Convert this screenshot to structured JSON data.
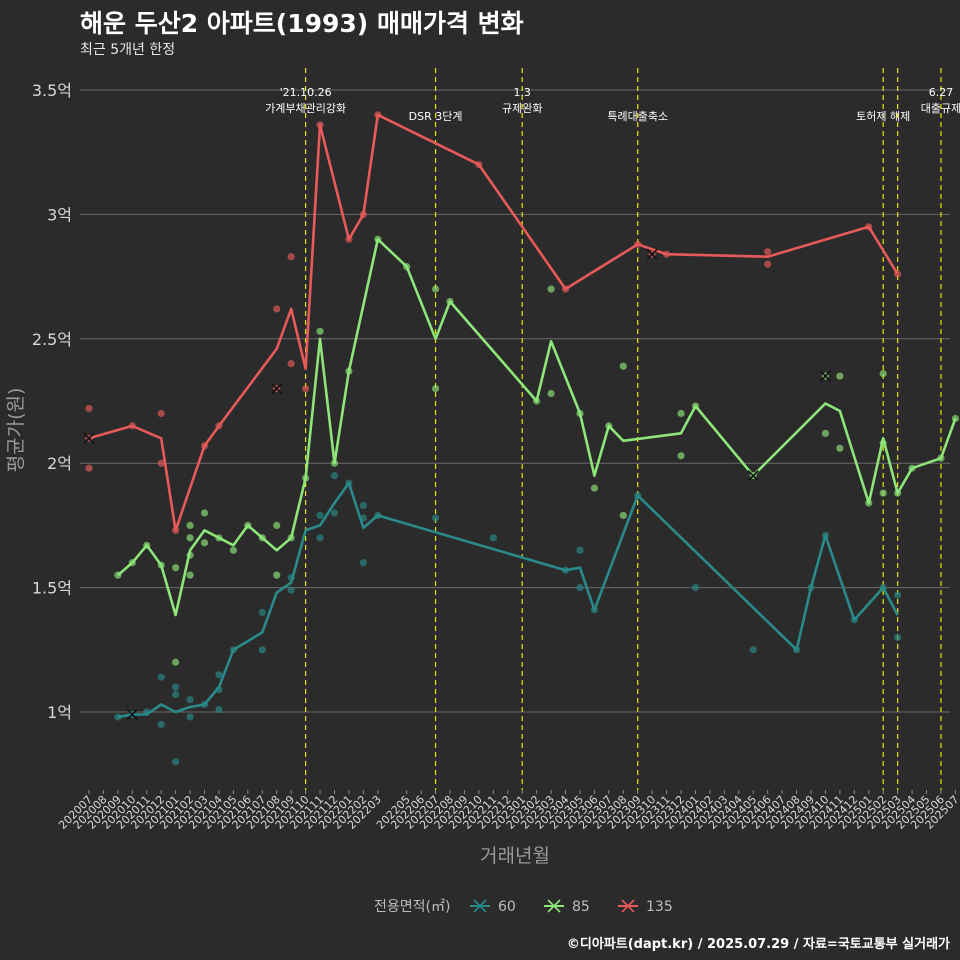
{
  "header": {
    "title": "해운 두산2 아파트(1993) 매매가격 변화",
    "subtitle": "최근 5개년 한정",
    "footer": "©디아파트(dapt.kr) / 2025.07.29 / 자료=국토교통부 실거래가"
  },
  "chart_data": {
    "type": "line",
    "title": "해운 두산2 아파트(1993) 매매가격 변화",
    "subtitle": "최근 5개년 한정",
    "xlabel": "거래년월",
    "ylabel": "평균가(원)",
    "ylim": [
      0.75,
      3.5
    ],
    "yticks": [
      1,
      1.5,
      2,
      2.5,
      3,
      3.5
    ],
    "ytick_labels": [
      "1억",
      "1.5억",
      "2억",
      "2.5억",
      "3억",
      "3.5억"
    ],
    "x_categories": [
      "202007",
      "202008",
      "202009",
      "202010",
      "202011",
      "202012",
      "202101",
      "202102",
      "202103",
      "202104",
      "202105",
      "202106",
      "202107",
      "202108",
      "202109",
      "202110",
      "202111",
      "202112",
      "202201",
      "202202",
      "202203",
      "202205",
      "202206",
      "202207",
      "202208",
      "202209",
      "202210",
      "202211",
      "202212",
      "202301",
      "202302",
      "202303",
      "202304",
      "202305",
      "202306",
      "202307",
      "202308",
      "202309",
      "202310",
      "202311",
      "202312",
      "202401",
      "202402",
      "202403",
      "202404",
      "202405",
      "202406",
      "202407",
      "202408",
      "202409",
      "202410",
      "202411",
      "202412",
      "202501",
      "202502",
      "202503",
      "202504",
      "202505",
      "202506",
      "202507"
    ],
    "legend": {
      "title": "전용면적(㎡)",
      "position": "bottom"
    },
    "grid": true,
    "series": [
      {
        "name": "60",
        "color": "#2a8a8a",
        "line": [
          [
            "202009",
            0.98
          ],
          [
            "202010",
            0.99
          ],
          [
            "202011",
            0.99
          ],
          [
            "202012",
            1.03
          ],
          [
            "202101",
            1.0
          ],
          [
            "202102",
            1.02
          ],
          [
            "202103",
            1.03
          ],
          [
            "202104",
            1.1
          ],
          [
            "202105",
            1.25
          ],
          [
            "202107",
            1.32
          ],
          [
            "202108",
            1.48
          ],
          [
            "202109",
            1.52
          ],
          [
            "202110",
            1.73
          ],
          [
            "202111",
            1.75
          ],
          [
            "202112",
            1.84
          ],
          [
            "202201",
            1.92
          ],
          [
            "202202",
            1.74
          ],
          [
            "202203",
            1.79
          ],
          [
            "202304",
            1.57
          ],
          [
            "202305",
            1.58
          ],
          [
            "202306",
            1.41
          ],
          [
            "202309",
            1.87
          ],
          [
            "202408",
            1.25
          ],
          [
            "202409",
            1.5
          ],
          [
            "202410",
            1.71
          ],
          [
            "202412",
            1.37
          ],
          [
            "202502",
            1.5
          ],
          [
            "202503",
            1.39
          ]
        ],
        "points": [
          [
            "202009",
            0.98
          ],
          [
            "202010",
            0.99
          ],
          [
            "202011",
            1.0
          ],
          [
            "202012",
            0.95
          ],
          [
            "202012",
            1.14
          ],
          [
            "202101",
            0.8
          ],
          [
            "202101",
            1.07
          ],
          [
            "202101",
            1.1
          ],
          [
            "202102",
            0.98
          ],
          [
            "202102",
            1.05
          ],
          [
            "202103",
            1.03
          ],
          [
            "202104",
            1.01
          ],
          [
            "202104",
            1.09
          ],
          [
            "202104",
            1.15
          ],
          [
            "202105",
            1.25
          ],
          [
            "202107",
            1.25
          ],
          [
            "202107",
            1.4
          ],
          [
            "202109",
            1.49
          ],
          [
            "202109",
            1.54
          ],
          [
            "202111",
            1.7
          ],
          [
            "202111",
            1.79
          ],
          [
            "202112",
            1.8
          ],
          [
            "202112",
            1.95
          ],
          [
            "202201",
            1.92
          ],
          [
            "202202",
            1.6
          ],
          [
            "202202",
            1.78
          ],
          [
            "202202",
            1.83
          ],
          [
            "202203",
            1.79
          ],
          [
            "202207",
            1.78
          ],
          [
            "202211",
            1.7
          ],
          [
            "202304",
            1.57
          ],
          [
            "202305",
            1.5
          ],
          [
            "202305",
            1.65
          ],
          [
            "202306",
            1.41
          ],
          [
            "202309",
            1.87
          ],
          [
            "202401",
            1.5
          ],
          [
            "202405",
            1.25
          ],
          [
            "202408",
            1.25
          ],
          [
            "202409",
            1.5
          ],
          [
            "202410",
            1.71
          ],
          [
            "202412",
            1.37
          ],
          [
            "202502",
            1.5
          ],
          [
            "202503",
            1.3
          ],
          [
            "202503",
            1.47
          ]
        ],
        "cancelled": [
          [
            "202010",
            0.99
          ]
        ]
      },
      {
        "name": "85",
        "color": "#8ee67a",
        "line": [
          [
            "202009",
            1.55
          ],
          [
            "202010",
            1.6
          ],
          [
            "202011",
            1.67
          ],
          [
            "202012",
            1.59
          ],
          [
            "202101",
            1.39
          ],
          [
            "202102",
            1.65
          ],
          [
            "202103",
            1.73
          ],
          [
            "202104",
            1.7
          ],
          [
            "202105",
            1.67
          ],
          [
            "202106",
            1.75
          ],
          [
            "202107",
            1.7
          ],
          [
            "202108",
            1.65
          ],
          [
            "202109",
            1.7
          ],
          [
            "202110",
            1.94
          ],
          [
            "202111",
            2.5
          ],
          [
            "202112",
            2.0
          ],
          [
            "202201",
            2.37
          ],
          [
            "202203",
            2.9
          ],
          [
            "202205",
            2.79
          ],
          [
            "202207",
            2.5
          ],
          [
            "202208",
            2.65
          ],
          [
            "202302",
            2.25
          ],
          [
            "202303",
            2.49
          ],
          [
            "202305",
            2.2
          ],
          [
            "202306",
            1.95
          ],
          [
            "202307",
            2.15
          ],
          [
            "202308",
            2.09
          ],
          [
            "202312",
            2.12
          ],
          [
            "202401",
            2.23
          ],
          [
            "202405",
            1.95
          ],
          [
            "202410",
            2.24
          ],
          [
            "202411",
            2.21
          ],
          [
            "202501",
            1.84
          ],
          [
            "202502",
            2.1
          ],
          [
            "202503",
            1.88
          ],
          [
            "202504",
            1.98
          ],
          [
            "202506",
            2.02
          ],
          [
            "202507",
            2.18
          ]
        ],
        "points": [
          [
            "202009",
            1.55
          ],
          [
            "202010",
            1.6
          ],
          [
            "202011",
            1.67
          ],
          [
            "202012",
            1.59
          ],
          [
            "202101",
            1.2
          ],
          [
            "202101",
            1.58
          ],
          [
            "202102",
            1.55
          ],
          [
            "202102",
            1.63
          ],
          [
            "202102",
            1.7
          ],
          [
            "202102",
            1.75
          ],
          [
            "202103",
            1.68
          ],
          [
            "202103",
            1.8
          ],
          [
            "202104",
            1.7
          ],
          [
            "202105",
            1.65
          ],
          [
            "202106",
            1.75
          ],
          [
            "202107",
            1.7
          ],
          [
            "202108",
            1.55
          ],
          [
            "202108",
            1.75
          ],
          [
            "202109",
            1.7
          ],
          [
            "202110",
            1.94
          ],
          [
            "202111",
            2.53
          ],
          [
            "202112",
            2.0
          ],
          [
            "202201",
            2.37
          ],
          [
            "202203",
            2.9
          ],
          [
            "202205",
            2.79
          ],
          [
            "202207",
            2.3
          ],
          [
            "202207",
            2.7
          ],
          [
            "202208",
            2.65
          ],
          [
            "202302",
            2.25
          ],
          [
            "202303",
            2.28
          ],
          [
            "202303",
            2.7
          ],
          [
            "202305",
            2.2
          ],
          [
            "202306",
            1.9
          ],
          [
            "202307",
            2.15
          ],
          [
            "202308",
            1.79
          ],
          [
            "202308",
            2.39
          ],
          [
            "202312",
            2.03
          ],
          [
            "202312",
            2.2
          ],
          [
            "202401",
            2.23
          ],
          [
            "202405",
            1.95
          ],
          [
            "202410",
            2.12
          ],
          [
            "202410",
            2.35
          ],
          [
            "202411",
            2.06
          ],
          [
            "202411",
            2.35
          ],
          [
            "202501",
            1.84
          ],
          [
            "202502",
            1.88
          ],
          [
            "202502",
            2.08
          ],
          [
            "202502",
            2.36
          ],
          [
            "202503",
            1.88
          ],
          [
            "202504",
            1.98
          ],
          [
            "202506",
            2.02
          ],
          [
            "202507",
            2.18
          ]
        ],
        "cancelled": [
          [
            "202405",
            1.95
          ],
          [
            "202410",
            2.35
          ]
        ]
      },
      {
        "name": "135",
        "color": "#e85a5a",
        "line": [
          [
            "202007",
            2.1
          ],
          [
            "202010",
            2.15
          ],
          [
            "202012",
            2.1
          ],
          [
            "202101",
            1.73
          ],
          [
            "202103",
            2.07
          ],
          [
            "202104",
            2.15
          ],
          [
            "202108",
            2.46
          ],
          [
            "202109",
            2.62
          ],
          [
            "202110",
            2.38
          ],
          [
            "202111",
            3.36
          ],
          [
            "202201",
            2.9
          ],
          [
            "202202",
            3.0
          ],
          [
            "202203",
            3.4
          ],
          [
            "202210",
            3.2
          ],
          [
            "202304",
            2.7
          ],
          [
            "202309",
            2.88
          ],
          [
            "202311",
            2.84
          ],
          [
            "202406",
            2.83
          ],
          [
            "202501",
            2.95
          ],
          [
            "202503",
            2.76
          ]
        ],
        "points": [
          [
            "202007",
            2.22
          ],
          [
            "202007",
            1.98
          ],
          [
            "202007",
            2.1
          ],
          [
            "202010",
            2.15
          ],
          [
            "202012",
            2.2
          ],
          [
            "202012",
            2.0
          ],
          [
            "202101",
            1.73
          ],
          [
            "202103",
            2.07
          ],
          [
            "202104",
            2.15
          ],
          [
            "202108",
            2.62
          ],
          [
            "202108",
            2.3
          ],
          [
            "202109",
            2.83
          ],
          [
            "202109",
            2.4
          ],
          [
            "202110",
            2.3
          ],
          [
            "202111",
            3.36
          ],
          [
            "202201",
            2.9
          ],
          [
            "202202",
            3.0
          ],
          [
            "202203",
            3.4
          ],
          [
            "202210",
            3.2
          ],
          [
            "202304",
            2.7
          ],
          [
            "202309",
            2.88
          ],
          [
            "202310",
            2.84
          ],
          [
            "202311",
            2.84
          ],
          [
            "202406",
            2.8
          ],
          [
            "202406",
            2.85
          ],
          [
            "202501",
            2.95
          ],
          [
            "202503",
            2.76
          ]
        ],
        "cancelled": [
          [
            "202007",
            2.1
          ],
          [
            "202108",
            2.3
          ],
          [
            "202310",
            2.84
          ]
        ]
      }
    ],
    "events": [
      {
        "x": "202110",
        "lines": [
          "'21.10.26",
          "가계부채관리강화"
        ]
      },
      {
        "x": "202207",
        "lines": [
          "DSR 3단계"
        ]
      },
      {
        "x": "202301",
        "lines": [
          "1.3",
          "규제완화"
        ]
      },
      {
        "x": "202309",
        "lines": [
          "특례대출축소"
        ]
      },
      {
        "x": "202502",
        "lines": [
          "토허제 해제"
        ]
      },
      {
        "x": "202503",
        "lines": []
      },
      {
        "x": "202506",
        "lines": [
          "6.27",
          "대출규제"
        ]
      }
    ]
  }
}
